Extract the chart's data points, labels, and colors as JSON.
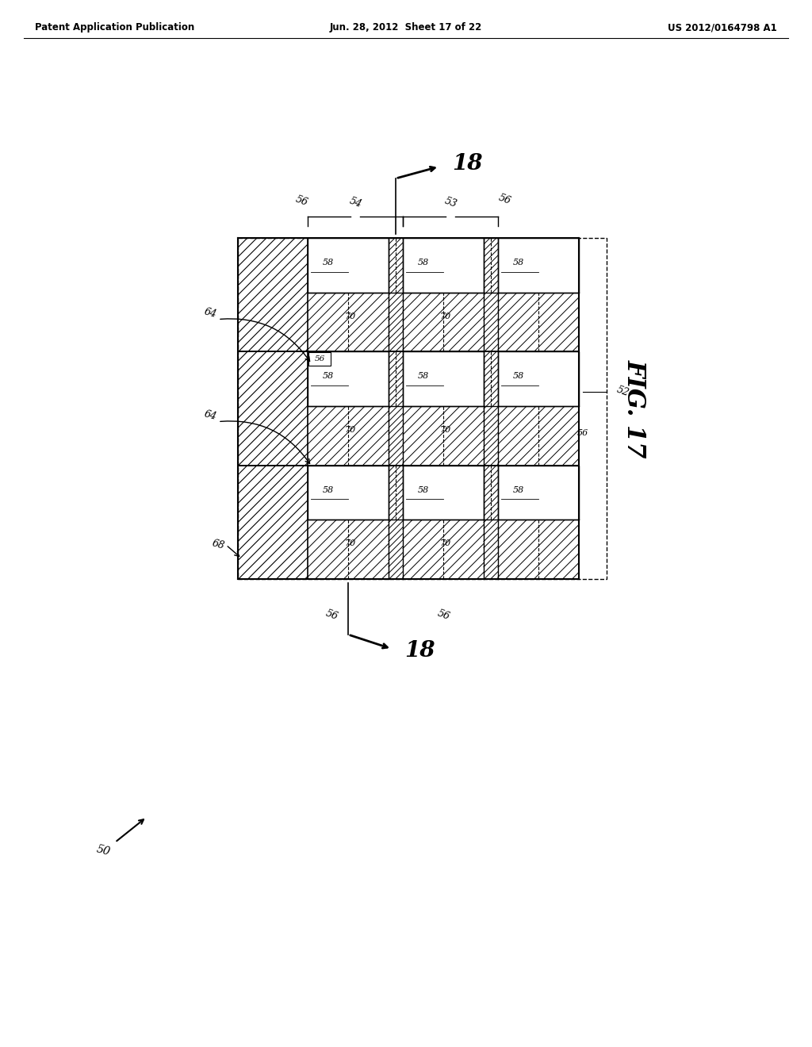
{
  "header_left": "Patent Application Publication",
  "header_mid": "Jun. 28, 2012  Sheet 17 of 22",
  "header_right": "US 2012/0164798 A1",
  "fig_label": "FIG. 17",
  "bg_color": "#ffffff"
}
